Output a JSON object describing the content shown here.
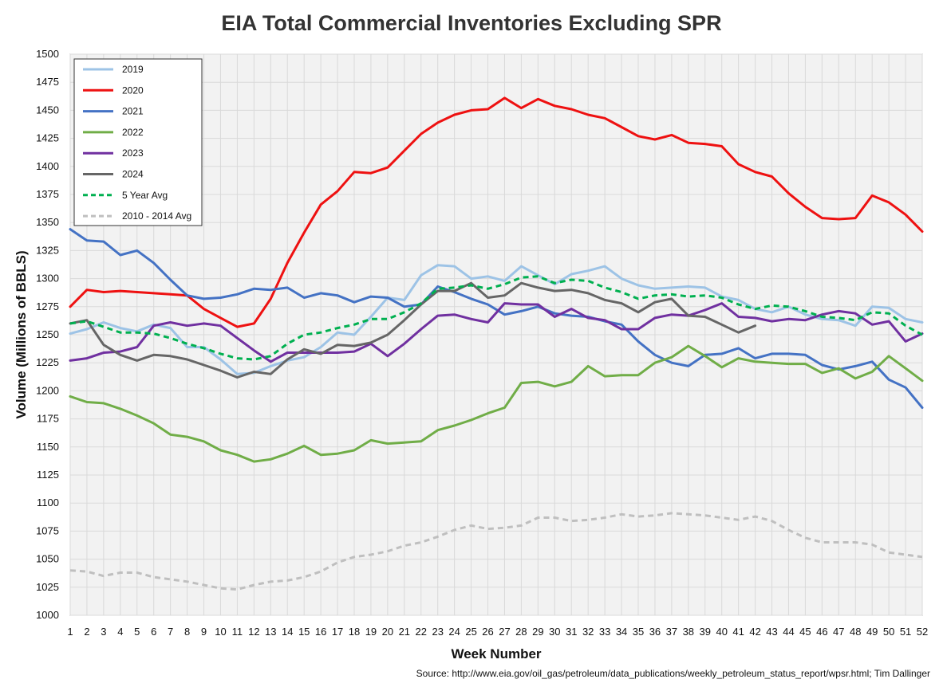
{
  "chart_data": {
    "type": "line",
    "title": "EIA Total Commercial Inventories Excluding SPR",
    "xlabel": "Week Number",
    "ylabel": "Volume (Millions of BBLS)",
    "source": "Source: http://www.eia.gov/oil_gas/petroleum/data_publications/weekly_petroleum_status_report/wpsr.html; Tim Dallinger",
    "xlim": [
      1,
      52
    ],
    "ylim": [
      1000,
      1500
    ],
    "ystep": 25,
    "grid": true,
    "legend_position": "top-left",
    "series": [
      {
        "name": "2019",
        "color": "#9dc3e6",
        "dash": "solid",
        "values": [
          1251,
          1255,
          1261,
          1256,
          1253,
          1259,
          1256,
          1239,
          1239,
          1228,
          1215,
          1216,
          1222,
          1227,
          1230,
          1239,
          1252,
          1250,
          1266,
          1283,
          1281,
          1303,
          1312,
          1311,
          1300,
          1302,
          1298,
          1311,
          1303,
          1295,
          1304,
          1307,
          1311,
          1300,
          1294,
          1291,
          1292,
          1293,
          1292,
          1284,
          1281,
          1273,
          1270,
          1275,
          1268,
          1264,
          1263,
          1258,
          1275,
          1274,
          1264,
          1261
        ]
      },
      {
        "name": "2020",
        "color": "#ee1111",
        "dash": "solid",
        "values": [
          1275,
          1290,
          1288,
          1289,
          1288,
          1287,
          1286,
          1285,
          1273,
          1265,
          1257,
          1260,
          1282,
          1314,
          1341,
          1366,
          1378,
          1395,
          1394,
          1399,
          1414,
          1429,
          1439,
          1446,
          1450,
          1451,
          1461,
          1452,
          1460,
          1454,
          1451,
          1446,
          1443,
          1435,
          1427,
          1424,
          1428,
          1421,
          1420,
          1418,
          1402,
          1395,
          1391,
          1376,
          1364,
          1354,
          1353,
          1354,
          1374,
          1368,
          1357,
          1342
        ]
      },
      {
        "name": "2021",
        "color": "#4472c4",
        "dash": "solid",
        "values": [
          1344,
          1334,
          1333,
          1321,
          1325,
          1314,
          1299,
          1285,
          1282,
          1283,
          1286,
          1291,
          1290,
          1292,
          1283,
          1287,
          1285,
          1279,
          1284,
          1283,
          1275,
          1277,
          1293,
          1288,
          1282,
          1277,
          1268,
          1271,
          1275,
          1269,
          1267,
          1266,
          1262,
          1259,
          1244,
          1232,
          1225,
          1222,
          1232,
          1233,
          1238,
          1229,
          1233,
          1233,
          1232,
          1223,
          1219,
          1222,
          1226,
          1210,
          1203,
          1185
        ]
      },
      {
        "name": "2022",
        "color": "#70ad47",
        "dash": "solid",
        "values": [
          1195,
          1190,
          1189,
          1184,
          1178,
          1171,
          1161,
          1159,
          1155,
          1147,
          1143,
          1137,
          1139,
          1144,
          1151,
          1143,
          1144,
          1147,
          1156,
          1153,
          1154,
          1155,
          1165,
          1169,
          1174,
          1180,
          1185,
          1207,
          1208,
          1204,
          1208,
          1222,
          1213,
          1214,
          1214,
          1225,
          1230,
          1240,
          1231,
          1221,
          1229,
          1226,
          1225,
          1224,
          1224,
          1216,
          1220,
          1211,
          1217,
          1231,
          1220,
          1209
        ]
      },
      {
        "name": "2023",
        "color": "#7030a0",
        "dash": "solid",
        "values": [
          1227,
          1229,
          1234,
          1235,
          1239,
          1258,
          1261,
          1258,
          1260,
          1258,
          1247,
          1236,
          1226,
          1234,
          1234,
          1234,
          1234,
          1235,
          1242,
          1231,
          1242,
          1255,
          1267,
          1268,
          1264,
          1261,
          1278,
          1277,
          1277,
          1266,
          1273,
          1265,
          1263,
          1255,
          1255,
          1265,
          1268,
          1267,
          1272,
          1278,
          1266,
          1265,
          1262,
          1264,
          1263,
          1268,
          1271,
          1269,
          1259,
          1262,
          1244,
          1251
        ]
      },
      {
        "name": "2024",
        "color": "#666666",
        "dash": "solid",
        "values": [
          1260,
          1263,
          1241,
          1232,
          1227,
          1232,
          1231,
          1228,
          1223,
          1218,
          1212,
          1217,
          1215,
          1228,
          1237,
          1233,
          1241,
          1240,
          1243,
          1250,
          1263,
          1277,
          1289,
          1289,
          1296,
          1283,
          1285,
          1296,
          1292,
          1289,
          1290,
          1287,
          1281,
          1278,
          1270,
          1279,
          1282,
          1267,
          1266,
          1259,
          1252,
          1258
        ]
      },
      {
        "name": "5 Year Avg",
        "color": "#00b050",
        "dash": "dash",
        "values": [
          1260,
          1262,
          1257,
          1252,
          1252,
          1251,
          1247,
          1242,
          1238,
          1233,
          1229,
          1228,
          1231,
          1242,
          1250,
          1252,
          1256,
          1259,
          1264,
          1264,
          1270,
          1278,
          1291,
          1292,
          1294,
          1291,
          1295,
          1301,
          1302,
          1296,
          1299,
          1298,
          1292,
          1288,
          1282,
          1285,
          1286,
          1284,
          1285,
          1283,
          1277,
          1273,
          1276,
          1275,
          1271,
          1266,
          1265,
          1263,
          1270,
          1269,
          1258,
          1250
        ]
      },
      {
        "name": "2010 - 2014 Avg",
        "color": "#bfbfbf",
        "dash": "dash",
        "values": [
          1040,
          1039,
          1035,
          1038,
          1038,
          1034,
          1032,
          1030,
          1027,
          1024,
          1023,
          1027,
          1030,
          1031,
          1034,
          1039,
          1047,
          1052,
          1054,
          1057,
          1062,
          1065,
          1070,
          1076,
          1080,
          1077,
          1078,
          1080,
          1087,
          1087,
          1084,
          1085,
          1087,
          1090,
          1088,
          1089,
          1091,
          1090,
          1089,
          1087,
          1085,
          1088,
          1084,
          1076,
          1069,
          1065,
          1065,
          1065,
          1063,
          1056,
          1054,
          1052
        ]
      }
    ]
  }
}
